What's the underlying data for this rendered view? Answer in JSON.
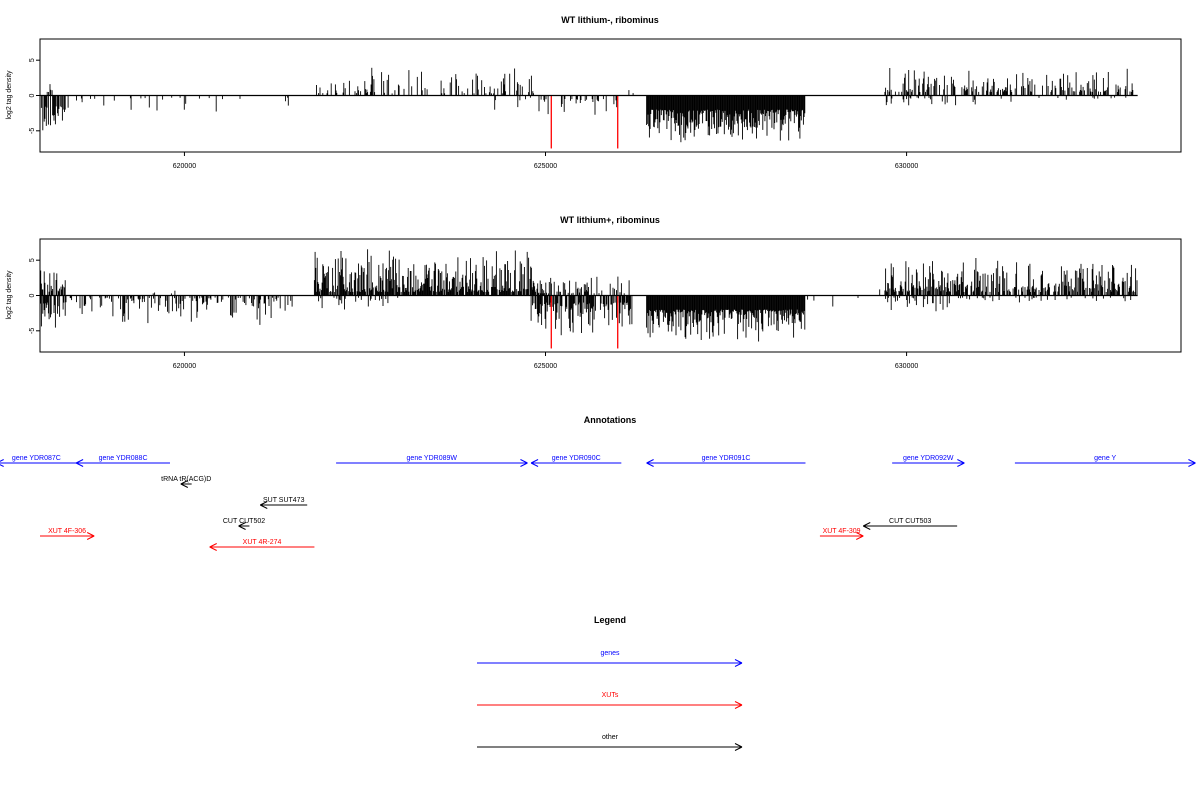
{
  "chart_data": [
    {
      "type": "bar",
      "title": "WT lithium-, ribominus",
      "ylabel": "log2 tag density",
      "xlabel": "",
      "xlim": [
        618000,
        633800
      ],
      "ylim": [
        -8,
        8
      ],
      "x_ticks": [
        620000,
        625000,
        630000
      ],
      "x_tick_labels": [
        "620000",
        "625000",
        "630000"
      ],
      "y_ticks": [
        -5,
        0,
        5
      ],
      "y_tick_labels": [
        "-5",
        "0",
        "5"
      ],
      "bar_color": "#000000",
      "highlight_color": "#ff0000",
      "segments": [
        {
          "x0": 618000,
          "x1": 618350,
          "sign": -1,
          "min": 1.5,
          "max": 5.5,
          "density": 0.7
        },
        {
          "x0": 618100,
          "x1": 618200,
          "sign": 1,
          "min": 0.5,
          "max": 2.0,
          "density": 0.2
        },
        {
          "x0": 618350,
          "x1": 620100,
          "sign": -1,
          "min": 0.3,
          "max": 4.5,
          "density": 0.12
        },
        {
          "x0": 620100,
          "x1": 621500,
          "sign": -1,
          "min": 0.3,
          "max": 2.5,
          "density": 0.04
        },
        {
          "x0": 621800,
          "x1": 624900,
          "sign": 1,
          "min": 0.3,
          "max": 4.5,
          "density": 0.3
        },
        {
          "x0": 624200,
          "x1": 624900,
          "sign": -1,
          "min": 0.3,
          "max": 2.5,
          "density": 0.05
        },
        {
          "x0": 624900,
          "x1": 626000,
          "sign": -1,
          "min": 0.5,
          "max": 3.5,
          "density": 0.25
        },
        {
          "x0": 626000,
          "x1": 626300,
          "sign": 1,
          "min": 0.3,
          "max": 2.5,
          "density": 0.1
        },
        {
          "x0": 626400,
          "x1": 628600,
          "sign": -1,
          "min": 2.0,
          "max": 7.0,
          "density": 1.0
        },
        {
          "x0": 628600,
          "x1": 629700,
          "sign": 1,
          "min": 0.3,
          "max": 1.5,
          "density": 0.02
        },
        {
          "x0": 629700,
          "x1": 631000,
          "sign": 1,
          "min": 0.5,
          "max": 4.5,
          "density": 0.4
        },
        {
          "x0": 629700,
          "x1": 631000,
          "sign": -1,
          "min": 0.3,
          "max": 2.0,
          "density": 0.15
        },
        {
          "x0": 631000,
          "x1": 633200,
          "sign": 1,
          "min": 0.5,
          "max": 4.0,
          "density": 0.45
        },
        {
          "x0": 631000,
          "x1": 633200,
          "sign": -1,
          "min": 0.3,
          "max": 1.0,
          "density": 0.05
        }
      ],
      "highlights": [
        {
          "x": 625080,
          "y": -7.5
        },
        {
          "x": 626000,
          "y": -7.5
        }
      ]
    },
    {
      "type": "bar",
      "title": "WT lithium+, ribominus",
      "ylabel": "log2 tag density",
      "xlabel": "",
      "xlim": [
        618000,
        633800
      ],
      "ylim": [
        -8,
        8
      ],
      "x_ticks": [
        620000,
        625000,
        630000
      ],
      "x_tick_labels": [
        "620000",
        "625000",
        "630000"
      ],
      "y_ticks": [
        -5,
        0,
        5
      ],
      "y_tick_labels": [
        "-5",
        "0",
        "5"
      ],
      "bar_color": "#000000",
      "highlight_color": "#ff0000",
      "segments": [
        {
          "x0": 618000,
          "x1": 618350,
          "sign": 1,
          "min": 0.5,
          "max": 5.0,
          "density": 0.6
        },
        {
          "x0": 618000,
          "x1": 618350,
          "sign": -1,
          "min": 1.0,
          "max": 5.5,
          "density": 0.6
        },
        {
          "x0": 618350,
          "x1": 621500,
          "sign": -1,
          "min": 0.3,
          "max": 4.5,
          "density": 0.35
        },
        {
          "x0": 619500,
          "x1": 619900,
          "sign": 1,
          "min": 0.3,
          "max": 1.0,
          "density": 0.1
        },
        {
          "x0": 621800,
          "x1": 624900,
          "sign": 1,
          "min": 0.5,
          "max": 7.0,
          "density": 0.85
        },
        {
          "x0": 621800,
          "x1": 623000,
          "sign": -1,
          "min": 0.3,
          "max": 2.0,
          "density": 0.1
        },
        {
          "x0": 624800,
          "x1": 626200,
          "sign": -1,
          "min": 1.0,
          "max": 6.0,
          "density": 0.75
        },
        {
          "x0": 624800,
          "x1": 626200,
          "sign": 1,
          "min": 0.3,
          "max": 3.0,
          "density": 0.3
        },
        {
          "x0": 626400,
          "x1": 628600,
          "sign": -1,
          "min": 2.0,
          "max": 7.0,
          "density": 1.0
        },
        {
          "x0": 628600,
          "x1": 629700,
          "sign": 1,
          "min": 0.3,
          "max": 1.5,
          "density": 0.03
        },
        {
          "x0": 628600,
          "x1": 629700,
          "sign": -1,
          "min": 0.3,
          "max": 2.0,
          "density": 0.03
        },
        {
          "x0": 629700,
          "x1": 631000,
          "sign": 1,
          "min": 0.5,
          "max": 6.0,
          "density": 0.7
        },
        {
          "x0": 629700,
          "x1": 631000,
          "sign": -1,
          "min": 0.3,
          "max": 2.5,
          "density": 0.25
        },
        {
          "x0": 631000,
          "x1": 633200,
          "sign": 1,
          "min": 0.5,
          "max": 5.5,
          "density": 0.65
        },
        {
          "x0": 631000,
          "x1": 633200,
          "sign": -1,
          "min": 0.3,
          "max": 1.0,
          "density": 0.08
        }
      ],
      "highlights": [
        {
          "x": 625080,
          "y": -7.5
        },
        {
          "x": 626000,
          "y": -7.5
        }
      ]
    }
  ],
  "annotations": {
    "title": "Annotations",
    "features": [
      {
        "label": "gene YDR087C",
        "color": "#0000ff",
        "dir": "left",
        "start": 618500,
        "end": 617400,
        "row": 0
      },
      {
        "label": "gene YDR088C",
        "color": "#0000ff",
        "dir": "left",
        "start": 619800,
        "end": 618500,
        "row": 0
      },
      {
        "label": "gene YDR089W",
        "color": "#0000ff",
        "dir": "right",
        "start": 622100,
        "end": 624750,
        "row": 0
      },
      {
        "label": "gene YDR090C",
        "color": "#0000ff",
        "dir": "left",
        "start": 626050,
        "end": 624800,
        "row": 0
      },
      {
        "label": "gene YDR091C",
        "color": "#0000ff",
        "dir": "left",
        "start": 628600,
        "end": 626400,
        "row": 0
      },
      {
        "label": "gene YDR092W",
        "color": "#0000ff",
        "dir": "right",
        "start": 629800,
        "end": 630800,
        "row": 0
      },
      {
        "label": "gene Y",
        "color": "#0000ff",
        "dir": "right",
        "start": 631500,
        "end": 634000,
        "row": 0
      },
      {
        "label": "tRNA tR(ACG)D",
        "color": "#000000",
        "dir": "left",
        "start": 620100,
        "end": 619950,
        "row": 1
      },
      {
        "label": "SUT SUT473",
        "color": "#000000",
        "dir": "left",
        "start": 621700,
        "end": 621050,
        "row": 2
      },
      {
        "label": "CUT CUT502",
        "color": "#000000",
        "dir": "left",
        "start": 620900,
        "end": 620750,
        "row": 3
      },
      {
        "label": "CUT CUT503",
        "color": "#000000",
        "dir": "left",
        "start": 630700,
        "end": 629400,
        "row": 3
      },
      {
        "label": "XUT 4F-306",
        "color": "#ff0000",
        "dir": "right",
        "start": 618000,
        "end": 618750,
        "row": 4
      },
      {
        "label": "XUT 4F-309",
        "color": "#ff0000",
        "dir": "right",
        "start": 628800,
        "end": 629400,
        "row": 4
      },
      {
        "label": "XUT 4R-274",
        "color": "#ff0000",
        "dir": "left",
        "start": 621800,
        "end": 620350,
        "row": 5
      }
    ]
  },
  "legend": {
    "title": "Legend",
    "entries": [
      {
        "label": "genes",
        "color": "#0000ff"
      },
      {
        "label": "XUTs",
        "color": "#ff0000"
      },
      {
        "label": "other",
        "color": "#000000"
      }
    ]
  }
}
